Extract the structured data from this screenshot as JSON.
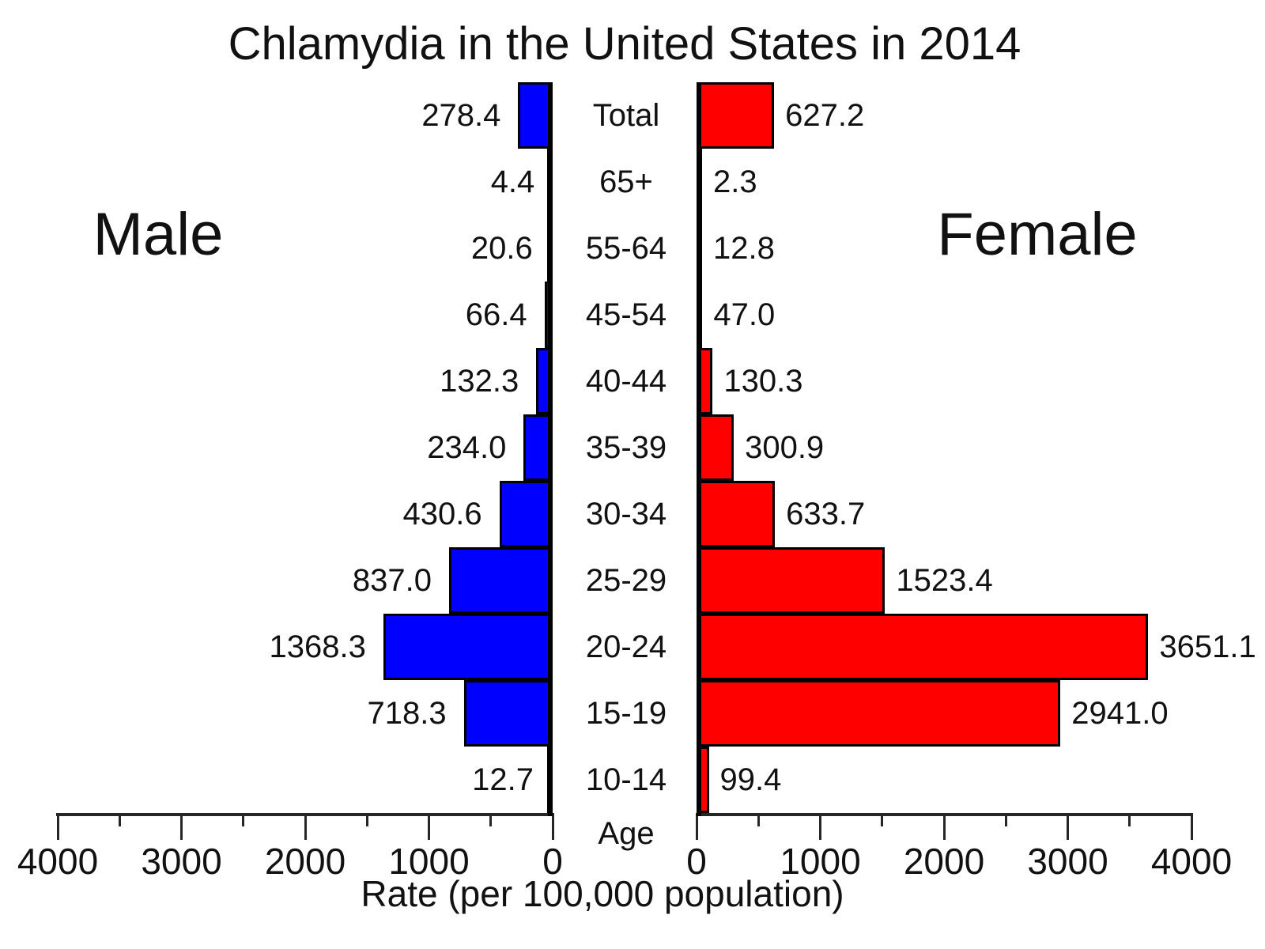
{
  "title": "Chlamydia in the United States in 2014",
  "side_labels": {
    "male": "Male",
    "female": "Female"
  },
  "axis": {
    "xlabel": "Rate (per 100,000 population)",
    "age_label": "Age",
    "tick_labels_left": [
      "4000",
      "3000",
      "2000",
      "1000",
      "0"
    ],
    "tick_labels_right": [
      "0",
      "1000",
      "2000",
      "3000",
      "4000"
    ],
    "major_step": 1000,
    "minor_step": 500,
    "max": 4000
  },
  "colors": {
    "male_bar": "#0000ff",
    "female_bar": "#ff0000",
    "bar_outline": "#000000",
    "axis": "#262626",
    "text": "#111111"
  },
  "chart_data": {
    "type": "bar",
    "subtype": "population-pyramid",
    "title": "Chlamydia in the United States in 2014",
    "xlabel": "Rate (per 100,000 population)",
    "ylabel": "Age",
    "xlim": [
      0,
      4000
    ],
    "grid": false,
    "categories": [
      "Total",
      "65+",
      "55-64",
      "45-54",
      "40-44",
      "35-39",
      "30-34",
      "25-29",
      "20-24",
      "15-19",
      "10-14"
    ],
    "series": [
      {
        "name": "Male",
        "side": "left",
        "color": "#0000ff",
        "values": [
          278.4,
          4.4,
          20.6,
          66.4,
          132.3,
          234.0,
          430.6,
          837.0,
          1368.3,
          718.3,
          12.7
        ]
      },
      {
        "name": "Female",
        "side": "right",
        "color": "#ff0000",
        "values": [
          627.2,
          2.3,
          12.8,
          47.0,
          130.3,
          300.9,
          633.7,
          1523.4,
          3651.1,
          2941.0,
          99.4
        ]
      }
    ],
    "value_labels": {
      "male": [
        "278.4",
        "4.4",
        "20.6",
        "66.4",
        "132.3",
        "234.0",
        "430.6",
        "837.0",
        "1368.3",
        "718.3",
        "12.7"
      ],
      "female": [
        "627.2",
        "2.3",
        "12.8",
        "47.0",
        "130.3",
        "300.9",
        "633.7",
        "1523.4",
        "3651.1",
        "2941.0",
        "99.4"
      ]
    }
  }
}
